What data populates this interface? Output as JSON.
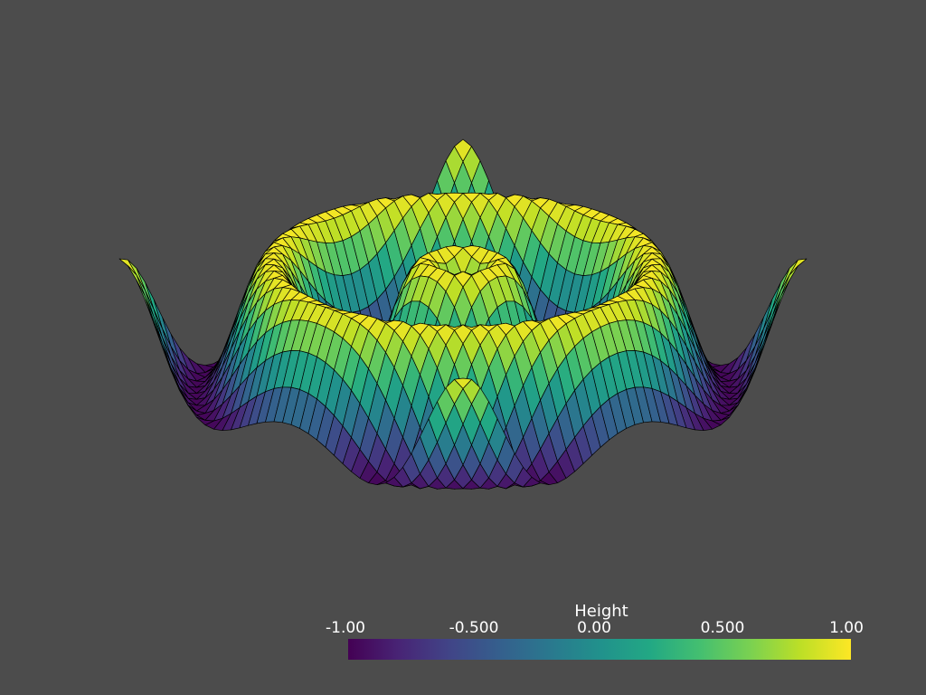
{
  "scene": {
    "background_color": "#4c4c4c",
    "surface": {
      "function": "sin(r) with radial distance from center",
      "colormap": "viridis",
      "edge_color": "#000000",
      "show_edges": true
    }
  },
  "scalar_bar": {
    "title": "Height",
    "range": [
      -1.0,
      1.0
    ],
    "colormap": "viridis",
    "ticks": [
      {
        "value": -1.0,
        "label": "-1.00"
      },
      {
        "value": -0.5,
        "label": "-0.500"
      },
      {
        "value": 0.0,
        "label": "0.00"
      },
      {
        "value": 0.5,
        "label": "0.500"
      },
      {
        "value": 1.0,
        "label": "1.00"
      }
    ]
  }
}
